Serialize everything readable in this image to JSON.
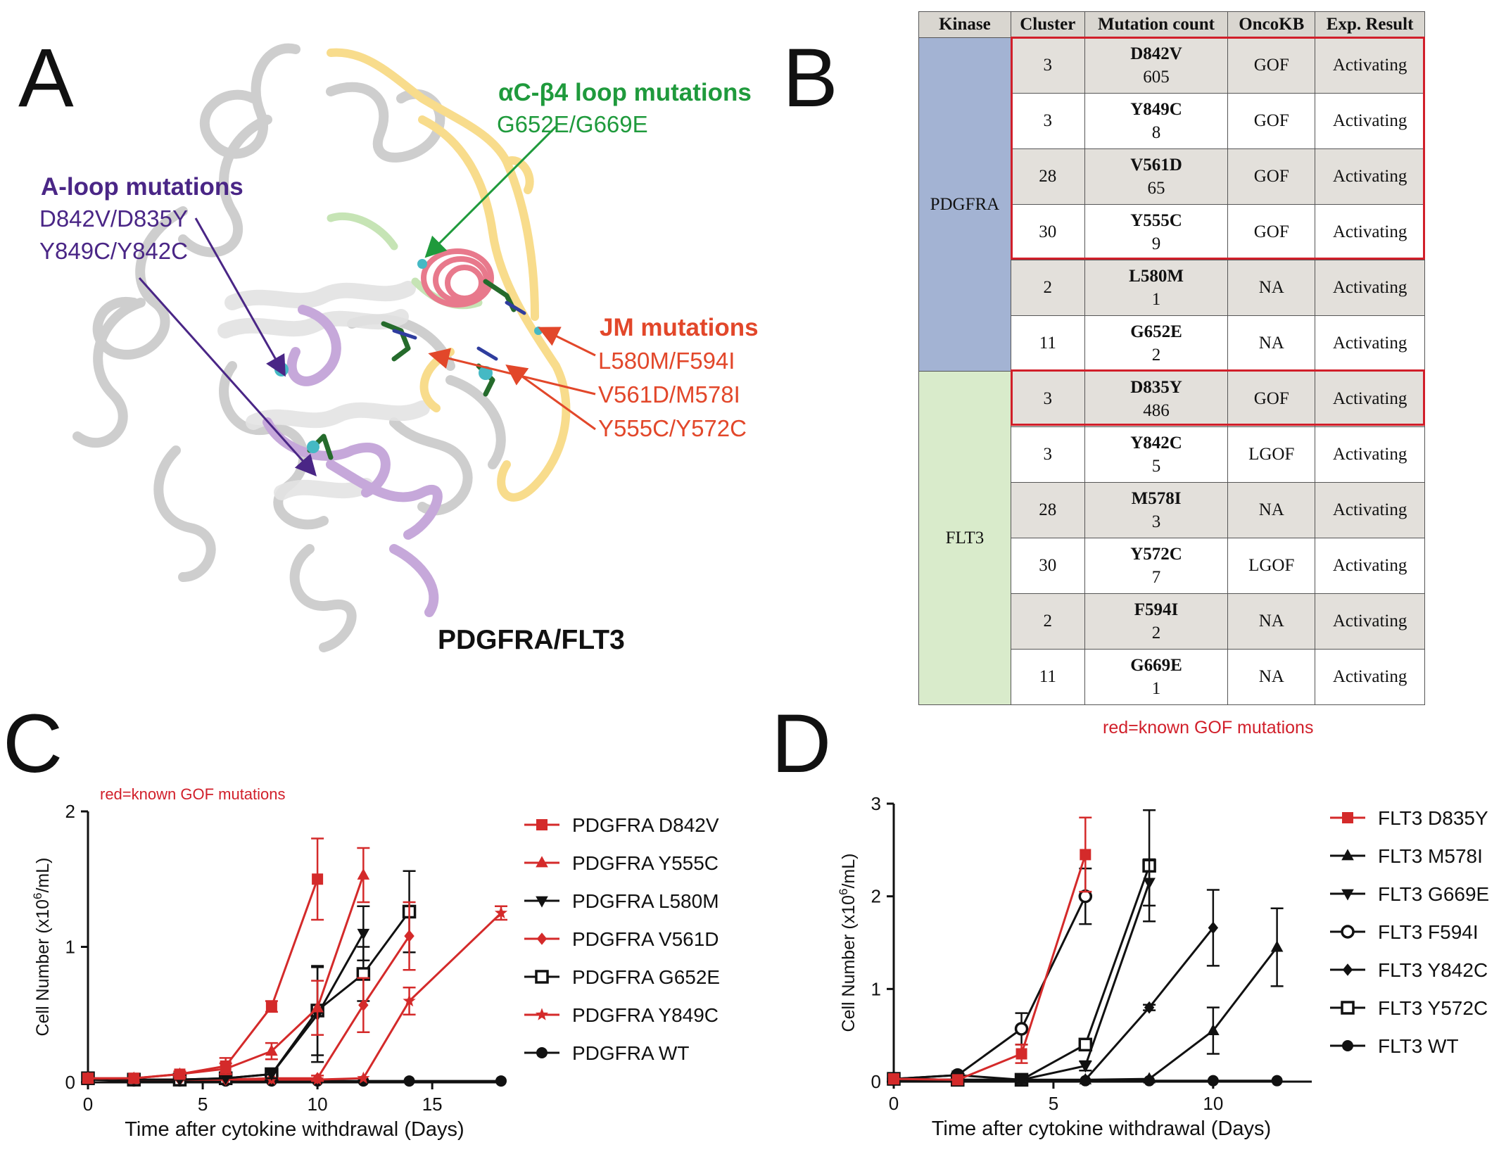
{
  "panels": {
    "a": "A",
    "b": "B",
    "c": "C",
    "d": "D"
  },
  "structure": {
    "title": "PDGFRA/FLT3",
    "ac_loop": {
      "title": "αC-β4 loop mutations",
      "muts": "G652E/G669E"
    },
    "a_loop": {
      "title": "A-loop mutations",
      "line1": "D842V/D835Y",
      "line2": "Y849C/Y842C"
    },
    "jm": {
      "title": "JM mutations",
      "line1": "L580M/F594I",
      "line2": "V561D/M578I",
      "line3": "Y555C/Y572C"
    },
    "colors": {
      "ac_loop": "#1f9a3c",
      "a_loop": "#4a2686",
      "jm": "#e2472a",
      "helix": "#e8798c",
      "jm_ribbon": "#f8dc8c",
      "aloop_ribbon": "#c6a8da",
      "backbone": "#d3d3d3"
    }
  },
  "table": {
    "headers": [
      "Kinase",
      "Cluster",
      "Mutation count",
      "OncoKB",
      "Exp. Result"
    ],
    "groups": [
      {
        "kinase": "PDGFRA",
        "rows": [
          {
            "cluster": "3",
            "mutation": "D842V",
            "count": "605",
            "oncokb": "GOF",
            "result": "Activating"
          },
          {
            "cluster": "3",
            "mutation": "Y849C",
            "count": "8",
            "oncokb": "GOF",
            "result": "Activating"
          },
          {
            "cluster": "28",
            "mutation": "V561D",
            "count": "65",
            "oncokb": "GOF",
            "result": "Activating"
          },
          {
            "cluster": "30",
            "mutation": "Y555C",
            "count": "9",
            "oncokb": "GOF",
            "result": "Activating"
          },
          {
            "cluster": "2",
            "mutation": "L580M",
            "count": "1",
            "oncokb": "NA",
            "result": "Activating"
          },
          {
            "cluster": "11",
            "mutation": "G652E",
            "count": "2",
            "oncokb": "NA",
            "result": "Activating"
          }
        ]
      },
      {
        "kinase": "FLT3",
        "rows": [
          {
            "cluster": "3",
            "mutation": "D835Y",
            "count": "486",
            "oncokb": "GOF",
            "result": "Activating"
          },
          {
            "cluster": "3",
            "mutation": "Y842C",
            "count": "5",
            "oncokb": "LGOF",
            "result": "Activating"
          },
          {
            "cluster": "28",
            "mutation": "M578I",
            "count": "3",
            "oncokb": "NA",
            "result": "Activating"
          },
          {
            "cluster": "30",
            "mutation": "Y572C",
            "count": "7",
            "oncokb": "LGOF",
            "result": "Activating"
          },
          {
            "cluster": "2",
            "mutation": "F594I",
            "count": "2",
            "oncokb": "NA",
            "result": "Activating"
          },
          {
            "cluster": "11",
            "mutation": "G669E",
            "count": "1",
            "oncokb": "NA",
            "result": "Activating"
          }
        ]
      }
    ],
    "note": "red=known GOF mutations",
    "colors": {
      "header": "#d9d6d0",
      "shade": "#e3e0db",
      "pdgfra": "#a3b3d3",
      "flt3": "#d9ebcb",
      "box": "#d11f2a"
    }
  },
  "chart_data": [
    {
      "type": "line",
      "panel": "C",
      "title": "",
      "note": "red=known GOF mutations",
      "xlabel": "Time after cytokine withdrawal (Days)",
      "ylabel_main": "Cell Number (x10",
      "ylabel_sup": "6",
      "ylabel_tail": "/mL)",
      "xlim": [
        0,
        18
      ],
      "ylim": [
        0,
        2
      ],
      "xticks": [
        0,
        5,
        10,
        15
      ],
      "yticks": [
        0,
        1,
        2
      ],
      "grid": false,
      "legend": "right",
      "series": [
        {
          "name": "PDGFRA D842V",
          "color": "#d42a2a",
          "marker": "square",
          "x": [
            0,
            2,
            4,
            6,
            8,
            10
          ],
          "y": [
            0.03,
            0.03,
            0.06,
            0.12,
            0.56,
            1.5
          ],
          "err": [
            0.01,
            0.01,
            0.02,
            0.06,
            0.04,
            0.3
          ]
        },
        {
          "name": "PDGFRA Y555C",
          "color": "#d42a2a",
          "marker": "triangle",
          "x": [
            0,
            2,
            4,
            6,
            8,
            10,
            12
          ],
          "y": [
            0.03,
            0.03,
            0.06,
            0.1,
            0.23,
            0.55,
            1.53
          ],
          "err": [
            0.01,
            0.01,
            0.02,
            0.04,
            0.06,
            0.2,
            0.2
          ]
        },
        {
          "name": "PDGFRA L580M",
          "color": "#111111",
          "marker": "triangle-down",
          "x": [
            0,
            2,
            4,
            6,
            8,
            10,
            12
          ],
          "y": [
            0.03,
            0.02,
            0.02,
            0.03,
            0.06,
            0.5,
            1.1
          ],
          "err": [
            0.01,
            0.01,
            0.01,
            0.01,
            0.03,
            0.35,
            0.2
          ]
        },
        {
          "name": "PDGFRA  V561D",
          "color": "#d42a2a",
          "marker": "diamond",
          "x": [
            0,
            2,
            4,
            6,
            8,
            10,
            12,
            14
          ],
          "y": [
            0.03,
            0.02,
            0.02,
            0.02,
            0.03,
            0.03,
            0.57,
            1.08
          ],
          "err": [
            0.01,
            0.01,
            0.01,
            0.01,
            0.01,
            0.02,
            0.2,
            0.25
          ]
        },
        {
          "name": "PDGFRA G652E",
          "color": "#111111",
          "marker": "square-open",
          "x": [
            0,
            2,
            4,
            6,
            8,
            10,
            12,
            14
          ],
          "y": [
            0.03,
            0.02,
            0.02,
            0.03,
            0.06,
            0.53,
            0.8,
            1.26
          ],
          "err": [
            0.01,
            0.01,
            0.01,
            0.01,
            0.03,
            0.33,
            0.2,
            0.3
          ]
        },
        {
          "name": "PDGFRA Y849C",
          "color": "#d42a2a",
          "marker": "star",
          "x": [
            0,
            2,
            4,
            6,
            8,
            10,
            12,
            14,
            18
          ],
          "y": [
            0.03,
            0.02,
            0.02,
            0.02,
            0.02,
            0.02,
            0.03,
            0.6,
            1.25
          ],
          "err": [
            0.01,
            0.01,
            0.01,
            0.01,
            0.01,
            0.01,
            0.01,
            0.1,
            0.05
          ]
        },
        {
          "name": "PDGFRA WT",
          "color": "#111111",
          "marker": "circle",
          "x": [
            0,
            2,
            4,
            6,
            8,
            10,
            12,
            14,
            18
          ],
          "y": [
            0.02,
            0.01,
            0.01,
            0.01,
            0.01,
            0.01,
            0.01,
            0.01,
            0.01
          ],
          "err": [
            0,
            0,
            0,
            0,
            0,
            0,
            0,
            0,
            0
          ]
        }
      ]
    },
    {
      "type": "line",
      "panel": "D",
      "title": "",
      "xlabel": "Time after cytokine withdrawal (Days)",
      "ylabel_main": "Cell Number (x10",
      "ylabel_sup": "6",
      "ylabel_tail": "/mL)",
      "xlim": [
        0,
        13
      ],
      "ylim": [
        0,
        3
      ],
      "xticks": [
        0,
        5,
        10
      ],
      "yticks": [
        0,
        1,
        2,
        3
      ],
      "grid": false,
      "legend": "right",
      "series": [
        {
          "name": "FLT3 D835Y",
          "color": "#d42a2a",
          "marker": "square",
          "x": [
            0,
            2,
            4,
            6
          ],
          "y": [
            0.03,
            0.02,
            0.3,
            2.45
          ],
          "err": [
            0.01,
            0.01,
            0.1,
            0.4
          ]
        },
        {
          "name": "FLT3 M578I",
          "color": "#111111",
          "marker": "triangle",
          "x": [
            0,
            2,
            4,
            6,
            8,
            10,
            12
          ],
          "y": [
            0.03,
            0.02,
            0.02,
            0.02,
            0.03,
            0.55,
            1.45
          ],
          "err": [
            0.01,
            0.01,
            0.01,
            0.01,
            0.01,
            0.25,
            0.42
          ]
        },
        {
          "name": "FLT3 G669E",
          "color": "#111111",
          "marker": "triangle-down",
          "x": [
            0,
            2,
            4,
            6,
            8
          ],
          "y": [
            0.03,
            0.07,
            0.02,
            0.17,
            2.15
          ],
          "err": [
            0.01,
            0.01,
            0.01,
            0.05,
            0.25
          ]
        },
        {
          "name": "FLT3 F594I",
          "color": "#111111",
          "marker": "circle-open",
          "x": [
            0,
            2,
            4,
            6
          ],
          "y": [
            0.03,
            0.07,
            0.57,
            2.0
          ],
          "err": [
            0.01,
            0.01,
            0.17,
            0.3
          ]
        },
        {
          "name": "FLT3 Y842C",
          "color": "#111111",
          "marker": "diamond",
          "x": [
            0,
            2,
            4,
            6,
            8,
            10
          ],
          "y": [
            0.03,
            0.02,
            0.02,
            0.02,
            0.8,
            1.66
          ],
          "err": [
            0.01,
            0.01,
            0.01,
            0.01,
            0.03,
            0.41
          ]
        },
        {
          "name": "FLT3 Y572C",
          "color": "#111111",
          "marker": "square-open",
          "x": [
            0,
            2,
            4,
            6,
            8
          ],
          "y": [
            0.03,
            0.02,
            0.02,
            0.4,
            2.33
          ],
          "err": [
            0.01,
            0.01,
            0.01,
            0.04,
            0.6
          ]
        },
        {
          "name": "FLT3 WT",
          "color": "#111111",
          "marker": "circle",
          "x": [
            0,
            2,
            4,
            6,
            8,
            10,
            12
          ],
          "y": [
            0.02,
            0.01,
            0.01,
            0.01,
            0.01,
            0.01,
            0.01
          ],
          "err": [
            0,
            0,
            0,
            0,
            0,
            0,
            0
          ]
        }
      ]
    }
  ]
}
